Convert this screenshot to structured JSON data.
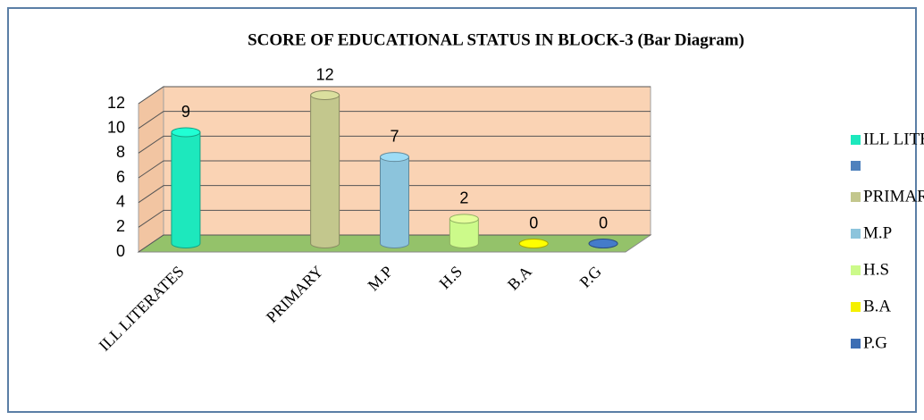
{
  "chart_data": {
    "type": "bar3d",
    "title": "SCORE OF EDUCATIONAL STATUS IN BLOCK-3 (Bar Diagram)",
    "categories": [
      "ILL LITERATES",
      null,
      "PRIMARY",
      "M.P",
      "H.S",
      "B.A",
      "P.G"
    ],
    "values": [
      9,
      null,
      12,
      7,
      2,
      0,
      0
    ],
    "colors": [
      "#1de8bd",
      "#4f81bd",
      "#c3c78d",
      "#8cc4dc",
      "#ccfa8a",
      "#f5f000",
      "#3d6eb4"
    ],
    "ylim": [
      0,
      12
    ],
    "yticks": [
      0,
      2,
      4,
      6,
      8,
      10,
      12
    ],
    "grid": true,
    "legend": "right"
  }
}
